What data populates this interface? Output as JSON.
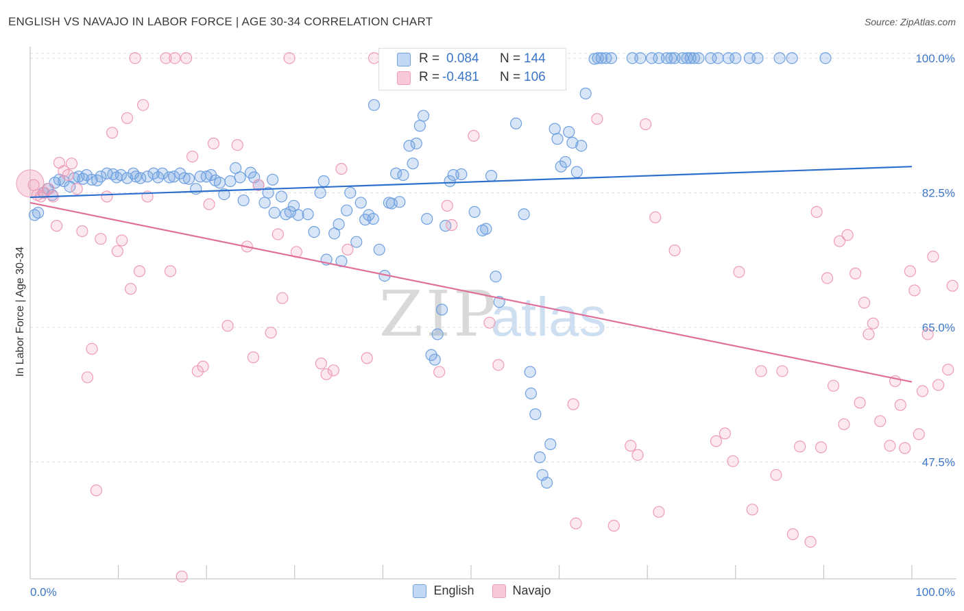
{
  "title": "ENGLISH VS NAVAJO IN LABOR FORCE | AGE 30-34 CORRELATION CHART",
  "source": "Source: ZipAtlas.com",
  "watermark": {
    "zip": "ZIP",
    "atlas": "atlas"
  },
  "legend": {
    "english": {
      "r_label": "R =",
      "r_value": "0.084",
      "n_label": "N =",
      "n_value": "144"
    },
    "navajo": {
      "r_label": "R =",
      "r_value": "-0.481",
      "n_label": "N =",
      "n_value": "106"
    }
  },
  "chart_data": {
    "type": "scatter",
    "title": "ENGLISH VS NAVAJO IN LABOR FORCE | AGE 30-34 CORRELATION CHART",
    "xlabel": "",
    "ylabel": "In Labor Force | Age 30-34",
    "xlim": [
      0,
      100
    ],
    "ylim": [
      32.3,
      101.5
    ],
    "x_tick_labels": [
      "0.0%",
      "100.0%"
    ],
    "y_ticks": [
      47.5,
      65.0,
      82.5,
      100.0
    ],
    "y_tick_labels": [
      "47.5%",
      "65.0%",
      "82.5%",
      "100.0%"
    ],
    "colors": {
      "english": "#6fa0e0",
      "navajo": "#ef9bb6",
      "english_line": "#2d6fcc",
      "navajo_line": "#e0709a",
      "tick_text": "#3b76c8"
    },
    "series": [
      {
        "name": "English",
        "trend": {
          "x": [
            0,
            100
          ],
          "y": [
            81.9,
            85.9
          ]
        },
        "points": [
          [
            0.5,
            79.6
          ],
          [
            0.9,
            79.9
          ],
          [
            1.5,
            82.5
          ],
          [
            2,
            83
          ],
          [
            2.5,
            82.2
          ],
          [
            2.8,
            83.8
          ],
          [
            3.3,
            84.2
          ],
          [
            3.8,
            84.0
          ],
          [
            4.5,
            83.3
          ],
          [
            5,
            84.4
          ],
          [
            5.5,
            84.6
          ],
          [
            6,
            84.3
          ],
          [
            6.4,
            84.8
          ],
          [
            7,
            84.2
          ],
          [
            7.6,
            84.1
          ],
          [
            8,
            84.6
          ],
          [
            8.7,
            85.0
          ],
          [
            9.4,
            84.9
          ],
          [
            9.8,
            84.5
          ],
          [
            10.3,
            84.8
          ],
          [
            11,
            84.4
          ],
          [
            11.7,
            85.0
          ],
          [
            12,
            84.6
          ],
          [
            12.5,
            84.4
          ],
          [
            13.3,
            84.6
          ],
          [
            14,
            85.0
          ],
          [
            14.5,
            84.5
          ],
          [
            15,
            85.0
          ],
          [
            15.8,
            84.5
          ],
          [
            16.3,
            84.6
          ],
          [
            17,
            85.0
          ],
          [
            17.5,
            84.4
          ],
          [
            18,
            84.3
          ],
          [
            18.8,
            83.0
          ],
          [
            19.3,
            84.6
          ],
          [
            20,
            84.6
          ],
          [
            20.5,
            84.8
          ],
          [
            21,
            84.1
          ],
          [
            21.5,
            83.8
          ],
          [
            22,
            82.3
          ],
          [
            22.7,
            84.0
          ],
          [
            23.3,
            85.7
          ],
          [
            23.8,
            84.5
          ],
          [
            24.2,
            81.5
          ],
          [
            25,
            85.1
          ],
          [
            25.4,
            84.5
          ],
          [
            25.9,
            83.5
          ],
          [
            26.6,
            81.2
          ],
          [
            27,
            82.5
          ],
          [
            27.5,
            84.2
          ],
          [
            27.7,
            79.9
          ],
          [
            28.5,
            82.0
          ],
          [
            29,
            79.7
          ],
          [
            29.5,
            80.0
          ],
          [
            29.9,
            80.8
          ],
          [
            30.4,
            79.6
          ],
          [
            31.5,
            79.7
          ],
          [
            32.2,
            77.4
          ],
          [
            32.9,
            82.5
          ],
          [
            33.3,
            84.0
          ],
          [
            33.6,
            73.8
          ],
          [
            34.5,
            77.2
          ],
          [
            35,
            78.4
          ],
          [
            35.3,
            73.6
          ],
          [
            35.9,
            80.2
          ],
          [
            36.3,
            82.5
          ],
          [
            37,
            76.1
          ],
          [
            37.5,
            81.2
          ],
          [
            38,
            79.0
          ],
          [
            38.4,
            79.6
          ],
          [
            38.9,
            79.1
          ],
          [
            39,
            93.9
          ],
          [
            39.6,
            75.1
          ],
          [
            40.2,
            71.7
          ],
          [
            40.7,
            81.2
          ],
          [
            41,
            81.1
          ],
          [
            41.5,
            85.0
          ],
          [
            41.9,
            81.3
          ],
          [
            42.3,
            84.8
          ],
          [
            43,
            88.6
          ],
          [
            43.4,
            86.3
          ],
          [
            43.8,
            88.9
          ],
          [
            44.2,
            91.2
          ],
          [
            44.6,
            92.5
          ],
          [
            45,
            79.1
          ],
          [
            45.5,
            61.4
          ],
          [
            45.9,
            60.8
          ],
          [
            46.2,
            64.1
          ],
          [
            46.7,
            67.3
          ],
          [
            47.1,
            78.2
          ],
          [
            47.6,
            84.0
          ],
          [
            48,
            84.8
          ],
          [
            48.9,
            84.9
          ],
          [
            50.4,
            80.0
          ],
          [
            51.3,
            77.6
          ],
          [
            51.7,
            77.8
          ],
          [
            52.3,
            84.7
          ],
          [
            52.8,
            71.6
          ],
          [
            53.2,
            68.3
          ],
          [
            55.1,
            91.5
          ],
          [
            56,
            79.7
          ],
          [
            56.7,
            59.2
          ],
          [
            56.8,
            56.4
          ],
          [
            57.3,
            53.7
          ],
          [
            57.8,
            48.1
          ],
          [
            58.1,
            45.8
          ],
          [
            58.6,
            44.8
          ],
          [
            59,
            49.8
          ],
          [
            59.5,
            90.8
          ],
          [
            59.8,
            89.5
          ],
          [
            60.2,
            85.9
          ],
          [
            60.7,
            86.5
          ],
          [
            61.1,
            90.4
          ],
          [
            61.5,
            89.0
          ],
          [
            62,
            85.2
          ],
          [
            62.5,
            88.6
          ],
          [
            63,
            95.4
          ],
          [
            64,
            99.9
          ],
          [
            64.4,
            100
          ],
          [
            64.8,
            100
          ],
          [
            65.3,
            100
          ],
          [
            65.9,
            100
          ],
          [
            68.3,
            100
          ],
          [
            69.2,
            100
          ],
          [
            70.5,
            100
          ],
          [
            71.3,
            100
          ],
          [
            72.2,
            100
          ],
          [
            72.7,
            100
          ],
          [
            73.1,
            100
          ],
          [
            74,
            100
          ],
          [
            74.5,
            100
          ],
          [
            74.9,
            100
          ],
          [
            75.3,
            100
          ],
          [
            75.8,
            100
          ],
          [
            77.2,
            100
          ],
          [
            78,
            100
          ],
          [
            79.2,
            100
          ],
          [
            80,
            100
          ],
          [
            81.6,
            100
          ],
          [
            82.5,
            100
          ],
          [
            85,
            100
          ],
          [
            86.4,
            100
          ],
          [
            90.2,
            100
          ]
        ]
      },
      {
        "name": "Navajo",
        "trend": {
          "x": [
            0,
            100
          ],
          "y": [
            81.2,
            57.9
          ]
        },
        "points": [
          [
            0.4,
            83.5
          ],
          [
            0.8,
            82.2
          ],
          [
            1.2,
            82.0
          ],
          [
            1.6,
            82.5
          ],
          [
            2.1,
            83.0
          ],
          [
            2.6,
            82.0
          ],
          [
            3,
            78.2
          ],
          [
            3.3,
            86.4
          ],
          [
            3.8,
            85.3
          ],
          [
            4.3,
            84.8
          ],
          [
            4.7,
            86.3
          ],
          [
            5.3,
            83.0
          ],
          [
            5.9,
            77.5
          ],
          [
            6.5,
            58.5
          ],
          [
            7,
            62.2
          ],
          [
            7.5,
            43.8
          ],
          [
            8,
            76.5
          ],
          [
            8.7,
            82.0
          ],
          [
            9.3,
            90.3
          ],
          [
            9.9,
            74.9
          ],
          [
            10.4,
            76.3
          ],
          [
            11,
            92.2
          ],
          [
            11.4,
            70.0
          ],
          [
            11.9,
            100
          ],
          [
            12.4,
            72.3
          ],
          [
            12.8,
            93.9
          ],
          [
            13.3,
            82.0
          ],
          [
            15.4,
            100
          ],
          [
            15.9,
            72.3
          ],
          [
            16.4,
            100
          ],
          [
            17.2,
            32.6
          ],
          [
            17.7,
            100
          ],
          [
            18.4,
            87.2
          ],
          [
            19,
            59.3
          ],
          [
            19.6,
            59.9
          ],
          [
            20.3,
            81.0
          ],
          [
            20.8,
            88.9
          ],
          [
            22.4,
            65.2
          ],
          [
            23.5,
            88.7
          ],
          [
            24.6,
            75.5
          ],
          [
            25.3,
            61.1
          ],
          [
            25.9,
            83.5
          ],
          [
            27.3,
            64.3
          ],
          [
            28.1,
            77.1
          ],
          [
            28.6,
            68.8
          ],
          [
            29.4,
            100
          ],
          [
            30.2,
            74.8
          ],
          [
            33,
            60.3
          ],
          [
            33.6,
            58.9
          ],
          [
            34.4,
            59.4
          ],
          [
            35.3,
            85.6
          ],
          [
            36,
            75.1
          ],
          [
            38.2,
            61.0
          ],
          [
            39,
            100
          ],
          [
            46.4,
            59.2
          ],
          [
            47.3,
            80.8
          ],
          [
            47.8,
            78.3
          ],
          [
            50.3,
            89.9
          ],
          [
            52.1,
            65.6
          ],
          [
            53.1,
            60.1
          ],
          [
            61.6,
            55.0
          ],
          [
            61.9,
            39.5
          ],
          [
            64.3,
            92.1
          ],
          [
            66.2,
            39.2
          ],
          [
            68.1,
            49.6
          ],
          [
            68.9,
            48.4
          ],
          [
            69.8,
            91.4
          ],
          [
            70.9,
            79.3
          ],
          [
            71.3,
            41.0
          ],
          [
            73.1,
            75.0
          ],
          [
            77.8,
            50.2
          ],
          [
            78.8,
            51.2
          ],
          [
            79.7,
            47.6
          ],
          [
            80.4,
            72.2
          ],
          [
            81.9,
            41.3
          ],
          [
            82.9,
            59.3
          ],
          [
            84.6,
            45.8
          ],
          [
            85.3,
            59.3
          ],
          [
            86.5,
            38.1
          ],
          [
            87.3,
            49.5
          ],
          [
            88.5,
            37.1
          ],
          [
            89.2,
            80.0
          ],
          [
            89.7,
            49.4
          ],
          [
            90.4,
            71.4
          ],
          [
            91.1,
            57.4
          ],
          [
            91.8,
            76.2
          ],
          [
            92.3,
            52.4
          ],
          [
            92.7,
            77.0
          ],
          [
            93.6,
            72.0
          ],
          [
            94.1,
            55.2
          ],
          [
            94.6,
            68.2
          ],
          [
            95.1,
            64.1
          ],
          [
            95.6,
            65.5
          ],
          [
            96.4,
            52.8
          ],
          [
            97.5,
            49.6
          ],
          [
            98.1,
            58.0
          ],
          [
            98.7,
            54.9
          ],
          [
            99.2,
            49.3
          ],
          [
            99.8,
            72.3
          ],
          [
            100.3,
            69.8
          ],
          [
            100.8,
            51.1
          ],
          [
            101.2,
            56.7
          ],
          [
            101.8,
            64.1
          ],
          [
            102.4,
            74.2
          ],
          [
            103,
            57.5
          ],
          [
            104.1,
            59.5
          ],
          [
            104.6,
            70.4
          ]
        ]
      }
    ]
  },
  "axis": {
    "x_left": "0.0%",
    "x_right": "100.0%",
    "y_title": "In Labor Force | Age 30-34"
  },
  "bottom_legend": {
    "english": "English",
    "navajo": "Navajo"
  }
}
